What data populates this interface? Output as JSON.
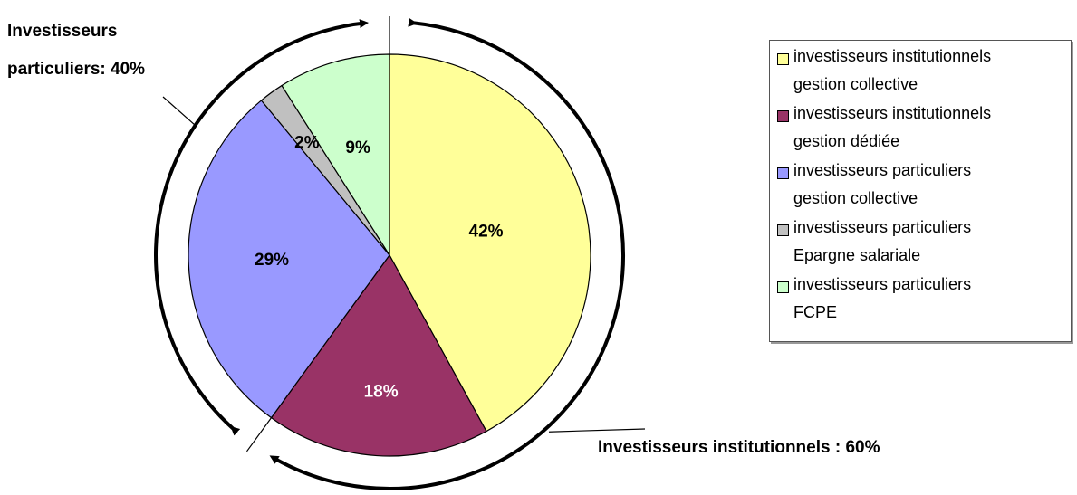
{
  "chart_data": {
    "type": "pie",
    "slices": [
      {
        "name": "investisseurs institutionnels gestion collective",
        "value": 42,
        "label": "42%",
        "color": "#FFFF99",
        "label_color": "#000000"
      },
      {
        "name": "investisseurs institutionnels gestion dédiée",
        "value": 18,
        "label": "18%",
        "color": "#993366",
        "label_color": "#FFFFFF"
      },
      {
        "name": "investisseurs particuliers gestion collective",
        "value": 29,
        "label": "29%",
        "color": "#9999FF",
        "label_color": "#000000"
      },
      {
        "name": "investisseurs particuliers Epargne salariale",
        "value": 2,
        "label": "2%",
        "color": "#C0C0C0",
        "label_color": "#000000"
      },
      {
        "name": "investisseurs particuliers FCPE",
        "value": 9,
        "label": "9%",
        "color": "#CCFFCC",
        "label_color": "#000000"
      }
    ],
    "legend": {
      "placement": "right",
      "entries": [
        {
          "line1": "investisseurs institutionnels",
          "line2": "gestion collective"
        },
        {
          "line1": "investisseurs institutionnels",
          "line2": "gestion dédiée"
        },
        {
          "line1": "investisseurs particuliers",
          "line2": "gestion collective"
        },
        {
          "line1": "investisseurs particuliers",
          "line2": "Epargne salariale"
        },
        {
          "line1": "investisseurs particuliers",
          "line2": "FCPE"
        }
      ]
    },
    "group_annotations": {
      "particuliers": {
        "line1": "Investisseurs",
        "line2": "particuliers: 40%",
        "value": 40
      },
      "institutionnels": {
        "text": "Investisseurs institutionnels : 60%",
        "value": 60
      }
    }
  }
}
